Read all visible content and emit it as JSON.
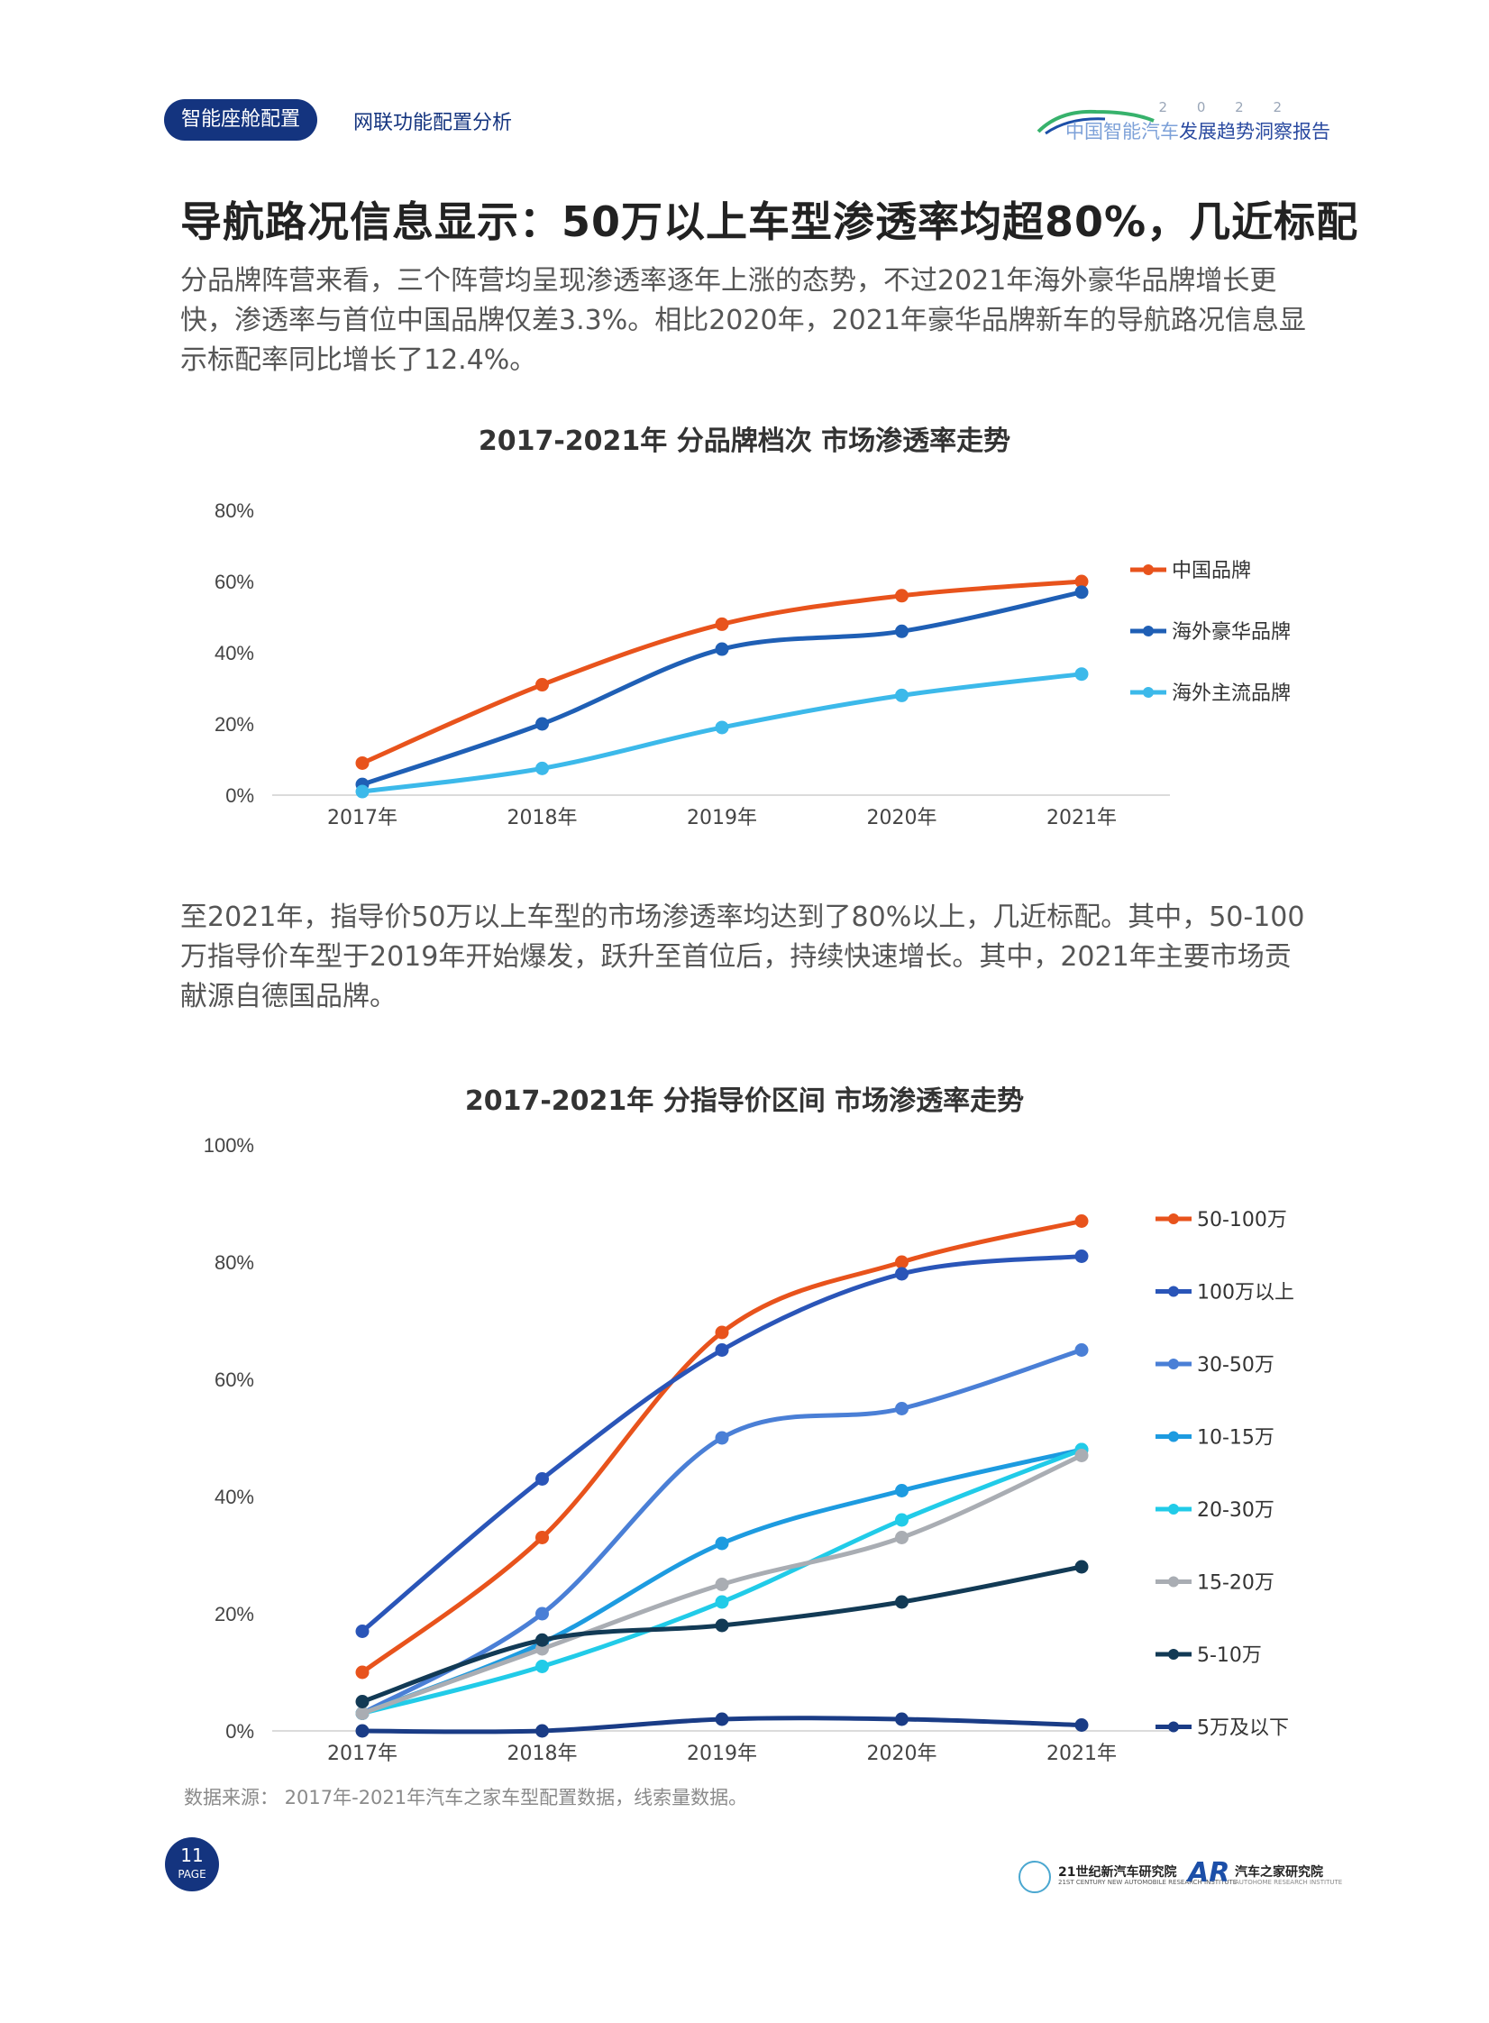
{
  "header": {
    "section_pill": "智能座舱配置",
    "section_sub": "网联功能配置分析",
    "brand_year": "2 0 2 2",
    "brand_name_light": "中国智能汽车",
    "brand_name_dark": "发展趋势洞察报告"
  },
  "title": "导航路况信息显示：50万以上车型渗透率均超80%，几近标配",
  "paragraph1": "分品牌阵营来看，三个阵营均呈现渗透率逐年上涨的态势，不过2021年海外豪华品牌增长更快，渗透率与首位中国品牌仅差3.3%。相比2020年，2021年豪华品牌新车的导航路况信息显示标配率同比增长了12.4%。",
  "paragraph2": "至2021年，指导价50万以上车型的市场渗透率均达到了80%以上，几近标配。其中，50-100万指导价车型于2019年开始爆发，跃升至首位后，持续快速增长。其中，2021年主要市场贡献源自德国品牌。",
  "source": "数据来源：  2017年-2021年汽车之家车型配置数据，线索量数据。",
  "page": {
    "number": "11",
    "label": "PAGE"
  },
  "footer": {
    "logo1": "21世纪新汽车研究院",
    "logo1_sub": "21ST CENTURY NEW AUTOMOBILE RESEARCH INSTITUTE",
    "logo2_mark": "AR",
    "logo2": "汽车之家研究院",
    "logo2_sub": "AUTOHOME RESEARCH INSTITUTE"
  },
  "chart_data": [
    {
      "type": "line",
      "title": "2017-2021年 分品牌档次 市场渗透率走势",
      "categories": [
        "2017年",
        "2018年",
        "2019年",
        "2020年",
        "2021年"
      ],
      "y_ticks": [
        "0%",
        "20%",
        "40%",
        "60%",
        "80%"
      ],
      "ylim": [
        0,
        80
      ],
      "legend_position": "right",
      "grid": false,
      "series": [
        {
          "name": "中国品牌",
          "color": "#e8531c",
          "values": [
            9,
            31,
            48,
            56,
            60
          ]
        },
        {
          "name": "海外豪华品牌",
          "color": "#1f5fb5",
          "values": [
            3,
            20,
            41,
            46,
            57
          ]
        },
        {
          "name": "海外主流品牌",
          "color": "#3cb9ea",
          "values": [
            1,
            7.5,
            19,
            28,
            34
          ]
        }
      ]
    },
    {
      "type": "line",
      "title": "2017-2021年 分指导价区间 市场渗透率走势",
      "categories": [
        "2017年",
        "2018年",
        "2019年",
        "2020年",
        "2021年"
      ],
      "y_ticks": [
        "0%",
        "20%",
        "40%",
        "60%",
        "80%",
        "100%"
      ],
      "ylim": [
        0,
        100
      ],
      "legend_position": "right",
      "grid": false,
      "series": [
        {
          "name": "50-100万",
          "color": "#e8531c",
          "values": [
            10,
            33,
            68,
            80,
            87
          ]
        },
        {
          "name": "100万以上",
          "color": "#2a55b8",
          "values": [
            17,
            43,
            65,
            78,
            81
          ]
        },
        {
          "name": "30-50万",
          "color": "#4a7fd6",
          "values": [
            3,
            20,
            50,
            55,
            65
          ]
        },
        {
          "name": "10-15万",
          "color": "#1d9be0",
          "values": [
            3,
            15,
            32,
            41,
            48
          ]
        },
        {
          "name": "20-30万",
          "color": "#21cbe8",
          "values": [
            3,
            11,
            22,
            36,
            48
          ]
        },
        {
          "name": "15-20万",
          "color": "#a9adb3",
          "values": [
            3,
            14,
            25,
            33,
            47
          ]
        },
        {
          "name": "5-10万",
          "color": "#123a55",
          "values": [
            5,
            15.5,
            18,
            22,
            28
          ]
        },
        {
          "name": "5万及以下",
          "color": "#1a3c86",
          "values": [
            0,
            0,
            2,
            2,
            1
          ]
        }
      ]
    }
  ]
}
